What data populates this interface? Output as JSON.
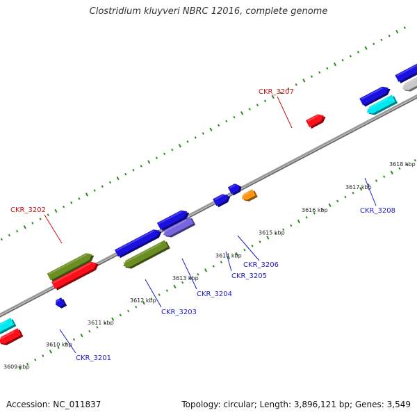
{
  "title": "Clostridium kluyveri NBRC 12016, complete genome",
  "footer": {
    "accession": "Accession: NC_011837",
    "summary": "Topology: circular; Length: 3,896,121 bp; Genes: 3,549"
  },
  "colors": {
    "backbone": "#7a7a7a",
    "tick": "#2a8a1a",
    "label_forward": "#cc1111",
    "label_reverse": "#1a1acc",
    "blue": "#1a10e0",
    "red": "#ff0f1a",
    "olive": "#6b8e23",
    "cyan": "#00e8f0",
    "gray": "#c8c8c8",
    "orange": "#ff9410",
    "purple": "#7766dd"
  },
  "scale_labels": [
    "3609 kbp",
    "3610 kbp",
    "3611 kbp",
    "3612 kbp",
    "3613 kbp",
    "3614 kbp",
    "3615 kbp",
    "3616 kbp",
    "3617 kbp",
    "3618 kbp"
  ],
  "gene_labels": [
    "CKR_3207",
    "CKR_3202",
    "CKR_3208",
    "CKR_3206",
    "CKR_3205",
    "CKR_3204",
    "CKR_3203",
    "CKR_3201"
  ]
}
